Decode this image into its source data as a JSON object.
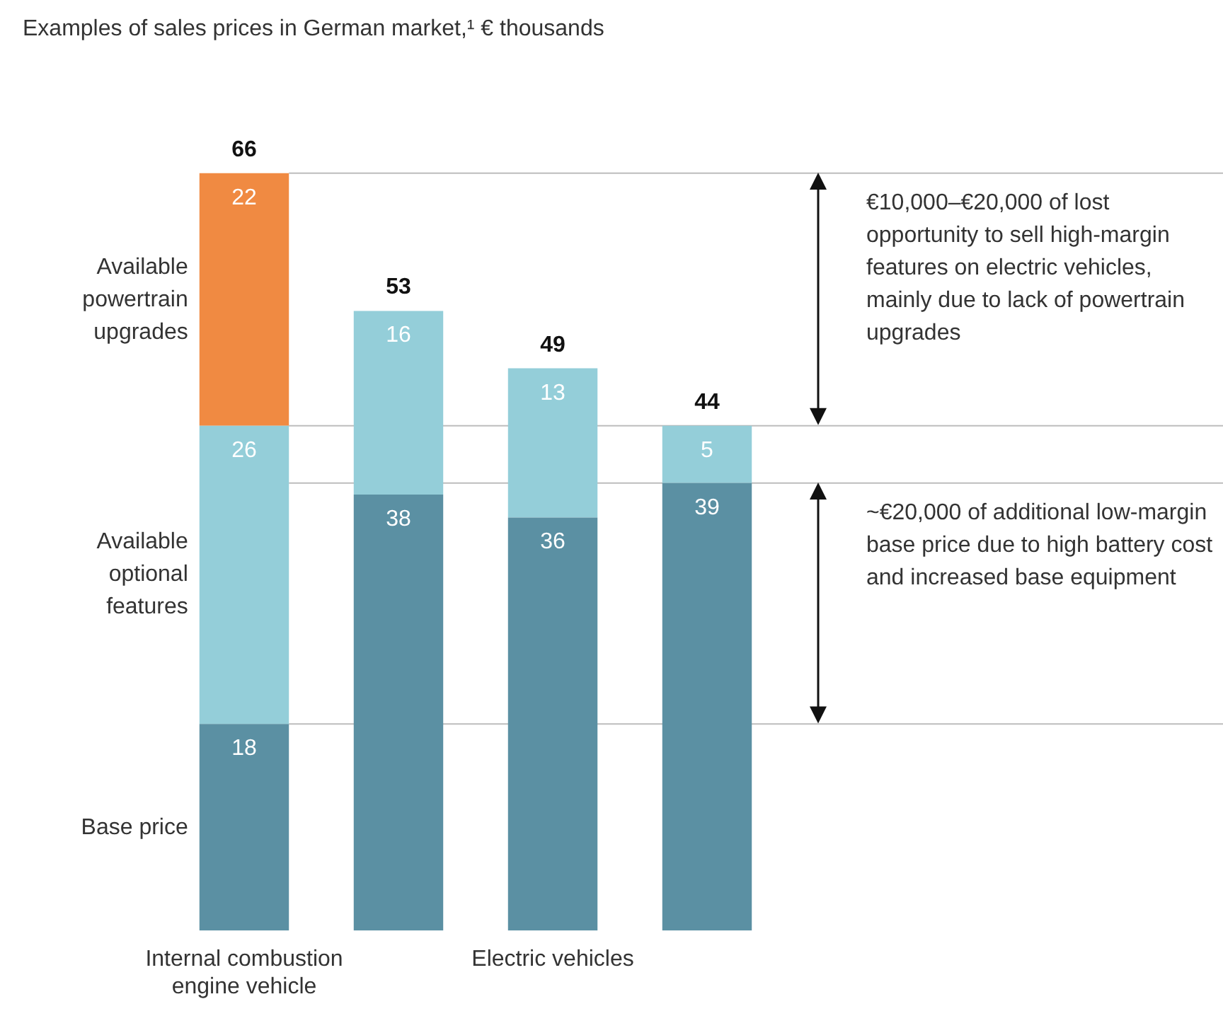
{
  "chart_data": {
    "type": "bar",
    "title": "Examples of sales prices in German market,¹ € thousands",
    "stacked": true,
    "data_labels": true,
    "categories": [
      "Internal combustion engine vehicle",
      null,
      "Electric vehicles",
      null
    ],
    "series": [
      {
        "name": "Base price",
        "color": "#5b90a3",
        "values": [
          18,
          38,
          36,
          39
        ]
      },
      {
        "name": "Available optional features",
        "color": "#94ced9",
        "values": [
          26,
          16,
          13,
          5
        ]
      },
      {
        "name": "Available powertrain upgrades",
        "color": "#f08a42",
        "values": [
          22,
          null,
          null,
          null
        ]
      }
    ],
    "totals": [
      "66",
      "53",
      "49",
      "44"
    ],
    "ref_lines": [
      {
        "axis": "y",
        "value": 66
      },
      {
        "axis": "y",
        "value": 44
      },
      {
        "axis": "y",
        "value": 39
      },
      {
        "axis": "y",
        "value": 18
      }
    ],
    "annotations": [
      "€10,000–€20,000 of lost opportunity to sell high-margin features on electric vehicles, mainly due to lack of powertrain upgrades",
      "~€20,000 of additional low-margin base price due to high battery cost and increased base equipment"
    ]
  }
}
